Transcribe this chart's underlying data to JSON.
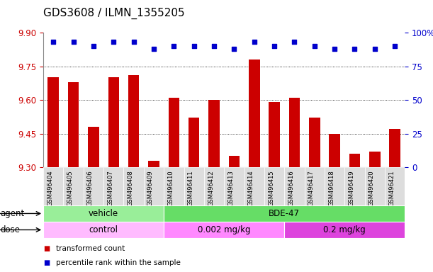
{
  "title": "GDS3608 / ILMN_1355205",
  "samples": [
    "GSM496404",
    "GSM496405",
    "GSM496406",
    "GSM496407",
    "GSM496408",
    "GSM496409",
    "GSM496410",
    "GSM496411",
    "GSM496412",
    "GSM496413",
    "GSM496414",
    "GSM496415",
    "GSM496416",
    "GSM496417",
    "GSM496418",
    "GSM496419",
    "GSM496420",
    "GSM496421"
  ],
  "bar_values": [
    9.7,
    9.68,
    9.48,
    9.7,
    9.71,
    9.33,
    9.61,
    9.52,
    9.6,
    9.35,
    9.78,
    9.59,
    9.61,
    9.52,
    9.45,
    9.36,
    9.37,
    9.47
  ],
  "dot_values": [
    93,
    93,
    90,
    93,
    93,
    88,
    90,
    90,
    90,
    88,
    93,
    90,
    93,
    90,
    88,
    88,
    88,
    90
  ],
  "bar_color": "#cc0000",
  "dot_color": "#0000cc",
  "ylim_left": [
    9.3,
    9.9
  ],
  "ylim_right": [
    0,
    100
  ],
  "yticks_left": [
    9.3,
    9.45,
    9.6,
    9.75,
    9.9
  ],
  "yticks_right": [
    0,
    25,
    50,
    75,
    100
  ],
  "ytick_labels_right": [
    "0",
    "25",
    "50",
    "75",
    "100%"
  ],
  "grid_values": [
    9.45,
    9.6,
    9.75
  ],
  "agent_groups": [
    {
      "label": "vehicle",
      "start": 0,
      "end": 6,
      "color": "#99ee99"
    },
    {
      "label": "BDE-47",
      "start": 6,
      "end": 18,
      "color": "#66dd66"
    }
  ],
  "dose_groups": [
    {
      "label": "control",
      "start": 0,
      "end": 6,
      "color": "#ffbbff"
    },
    {
      "label": "0.002 mg/kg",
      "start": 6,
      "end": 12,
      "color": "#ff88ff"
    },
    {
      "label": "0.2 mg/kg",
      "start": 12,
      "end": 18,
      "color": "#dd44dd"
    }
  ],
  "legend_items": [
    {
      "color": "#cc0000",
      "label": "transformed count"
    },
    {
      "color": "#0000cc",
      "label": "percentile rank within the sample"
    }
  ],
  "bar_width": 0.55,
  "bg_color": "#ffffff",
  "plot_bg_color": "#ffffff",
  "tick_label_color_left": "#cc0000",
  "tick_label_color_right": "#0000cc",
  "title_fontsize": 11,
  "tick_fontsize": 8.5,
  "label_fontsize": 8.5,
  "sample_fontsize": 6.0,
  "xticklabel_bg": "#dddddd"
}
